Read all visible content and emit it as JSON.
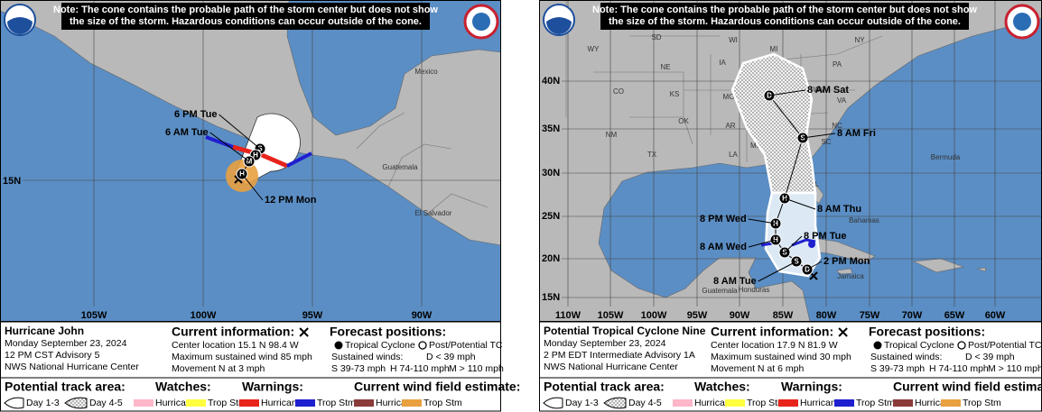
{
  "panels": [
    {
      "note": [
        "Note: The cone contains the probable path of the storm center but does not show",
        "the size of the storm. Hazardous conditions can occur outside of the cone."
      ],
      "map_labels": [
        "Mexico",
        "Guatemala",
        "El Salvador"
      ],
      "forecast_labels": [
        "6 PM Tue",
        "6 AM Tue",
        "12 PM Mon"
      ],
      "markers": [
        "S",
        "H",
        "M",
        "H"
      ],
      "lat_labels": [
        "15N"
      ],
      "lon_labels": [
        "105W",
        "100W",
        "95W",
        "90W"
      ],
      "storm_name": "Hurricane John",
      "date": "Monday September 23, 2024",
      "advisory": "12 PM CST Advisory 5",
      "office": "NWS National Hurricane Center",
      "current": {
        "title": "Current information:",
        "lines": [
          "Center location 15.1 N 98.4 W",
          "Maximum sustained wind 85 mph",
          "Movement N at 3 mph"
        ]
      },
      "forecast": {
        "title": "Forecast positions:",
        "tc": "Tropical Cyclone",
        "post": "Post/Potential TC",
        "winds_title": "Sustained winds:",
        "d": "D < 39 mph",
        "s": "S 39-73 mph",
        "h": "H 74-110 mph",
        "m": "M > 110 mph"
      },
      "legend": {
        "track": "Potential track area:",
        "day13": "Day 1-3",
        "day45": "Day 4-5",
        "watches": "Watches:",
        "watch_items": [
          "Hurricane",
          "Trop Stm"
        ],
        "warnings": "Warnings:",
        "warning_items": [
          "Hurricane",
          "Trop Stm"
        ],
        "wind": "Current wind field estimate:",
        "wind_items": [
          "Hurricane",
          "Trop Stm"
        ]
      }
    },
    {
      "note": [
        "Note: The cone contains the probable path of the storm center but does not show",
        "the size of the storm. Hazardous conditions can occur outside of the cone."
      ],
      "map_labels": [
        "WY",
        "SD",
        "NE",
        "CO",
        "KS",
        "OK",
        "NM",
        "TX",
        "IA",
        "MO",
        "AR",
        "LA",
        "MS",
        "AL",
        "GA",
        "FL",
        "TN",
        "KY",
        "IL",
        "IN",
        "OH",
        "WV",
        "VA",
        "NC",
        "SC",
        "PA",
        "NY",
        "MI",
        "WI",
        "Bermuda",
        "Bahamas",
        "Jamaica",
        "Honduras",
        "Guatemala"
      ],
      "forecast_labels": [
        "2 PM Mon",
        "8 AM Tue",
        "8 AM Wed",
        "8 PM Tue",
        "8 PM Wed",
        "8 AM Thu",
        "8 AM Fri",
        "8 AM Sat"
      ],
      "markers": [
        "D",
        "S",
        "S",
        "H",
        "H",
        "H",
        "S",
        "D"
      ],
      "lat_labels": [
        "40N",
        "35N",
        "30N",
        "25N",
        "20N",
        "15N"
      ],
      "lon_labels": [
        "110W",
        "105W",
        "100W",
        "95W",
        "90W",
        "85W",
        "80W",
        "75W",
        "70W",
        "65W",
        "60W"
      ],
      "storm_name": "Potential Tropical Cyclone Nine",
      "date": "Monday September 23, 2024",
      "advisory": "2 PM EDT Intermediate Advisory 1A",
      "office": "NWS National Hurricane Center",
      "current": {
        "title": "Current information:",
        "lines": [
          "Center location 17.9 N 81.9 W",
          "Maximum sustained wind 30 mph",
          "Movement N at 6 mph"
        ]
      },
      "forecast": {
        "title": "Forecast positions:",
        "tc": "Tropical Cyclone",
        "post": "Post/Potential TC",
        "winds_title": "Sustained winds:",
        "d": "D < 39 mph",
        "s": "S 39-73 mph",
        "h": "H 74-110 mph",
        "m": "M > 110 mph"
      },
      "legend": {
        "track": "Potential track area:",
        "day13": "Day 1-3",
        "day45": "Day 4-5",
        "watches": "Watches:",
        "watch_items": [
          "Hurricane",
          "Trop Stm"
        ],
        "warnings": "Warnings:",
        "warning_items": [
          "Hurricane",
          "Trop Stm"
        ],
        "wind": "Current wind field estimate:",
        "wind_items": [
          "Hurricane",
          "Trop Stm"
        ]
      }
    }
  ]
}
